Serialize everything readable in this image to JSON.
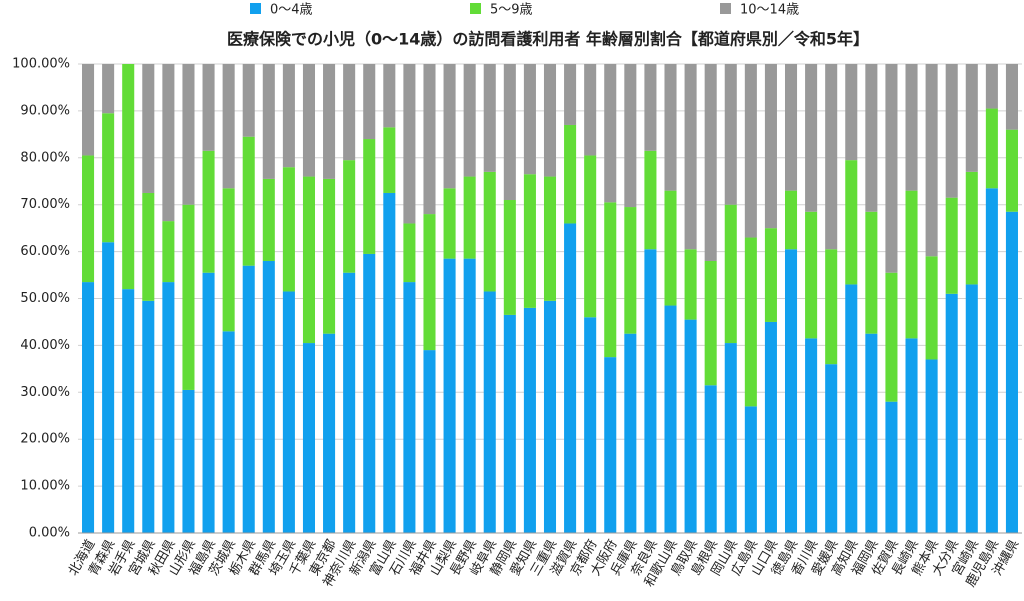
{
  "chart_data": {
    "type": "stacked_bar",
    "title": "医療保険での小児（0〜14歳）の訪問看護利用者 年齢層別割合【都道府県別／令和5年】",
    "categories": [
      "北海道",
      "青森県",
      "岩手県",
      "宮城県",
      "秋田県",
      "山形県",
      "福島県",
      "茨城県",
      "栃木県",
      "群馬県",
      "埼玉県",
      "千葉県",
      "東京都",
      "神奈川県",
      "新潟県",
      "富山県",
      "石川県",
      "福井県",
      "山梨県",
      "長野県",
      "岐阜県",
      "静岡県",
      "愛知県",
      "三重県",
      "滋賀県",
      "京都府",
      "大阪府",
      "兵庫県",
      "奈良県",
      "和歌山県",
      "鳥取県",
      "島根県",
      "岡山県",
      "広島県",
      "山口県",
      "徳島県",
      "香川県",
      "愛媛県",
      "高知県",
      "福岡県",
      "佐賀県",
      "長崎県",
      "熊本県",
      "大分県",
      "宮崎県",
      "鹿児島県",
      "沖縄県"
    ],
    "series": [
      {
        "name": "0〜4歳",
        "color": "#11a0ee",
        "values": [
          53.5,
          62,
          52,
          49.5,
          53.5,
          30.5,
          55.5,
          43,
          57,
          58,
          51.5,
          40.5,
          42.5,
          55.5,
          59.5,
          72.5,
          53.5,
          39,
          58.5,
          58.5,
          51.5,
          46.5,
          48,
          49.5,
          66,
          46,
          37.5,
          42.5,
          60.5,
          48.5,
          45.5,
          31.5,
          40.5,
          27,
          45,
          60.5,
          41.5,
          36,
          53,
          42.5,
          28,
          41.5,
          37,
          51,
          53,
          73.5,
          68.5
        ]
      },
      {
        "name": "5〜9歳",
        "color": "#62dc37",
        "values": [
          27,
          27.5,
          48,
          23,
          13,
          39.5,
          26,
          30.5,
          27.5,
          17.5,
          26.5,
          35.5,
          33,
          24,
          24.5,
          14,
          12.5,
          29,
          15,
          17.5,
          25.5,
          24.5,
          28.5,
          26.5,
          21,
          34.5,
          33,
          27,
          21,
          24.5,
          15,
          26.5,
          29.5,
          36,
          20,
          12.5,
          27,
          24.5,
          26.5,
          26,
          27.5,
          31.5,
          22,
          20.5,
          24,
          17,
          17.5
        ]
      },
      {
        "name": "10〜14歳",
        "color": "#999999",
        "values": [
          19.5,
          10.5,
          0,
          27.5,
          33.5,
          30,
          18.5,
          26.5,
          15.5,
          24.5,
          22,
          24,
          24.5,
          20.5,
          16,
          13.5,
          34,
          32,
          26.5,
          24,
          23,
          29,
          23.5,
          24,
          13,
          19.5,
          29.5,
          30.5,
          18.5,
          27,
          39.5,
          42,
          30,
          37,
          35,
          27,
          31.5,
          39.5,
          20.5,
          31.5,
          44.5,
          27,
          41,
          28.5,
          23,
          9.5,
          14
        ]
      }
    ],
    "ylim": [
      0,
      100
    ],
    "yticks": [
      {
        "value": 0,
        "label": "0.00%"
      },
      {
        "value": 10,
        "label": "10.00%"
      },
      {
        "value": 20,
        "label": "20.00%"
      },
      {
        "value": 30,
        "label": "30.00%"
      },
      {
        "value": 40,
        "label": "40.00%"
      },
      {
        "value": 50,
        "label": "50.00%"
      },
      {
        "value": 60,
        "label": "60.00%"
      },
      {
        "value": 70,
        "label": "70.00%"
      },
      {
        "value": 80,
        "label": "80.00%"
      },
      {
        "value": 90,
        "label": "90.00%"
      },
      {
        "value": 100,
        "label": "100.00%"
      }
    ],
    "grid": true,
    "legend": "top"
  }
}
